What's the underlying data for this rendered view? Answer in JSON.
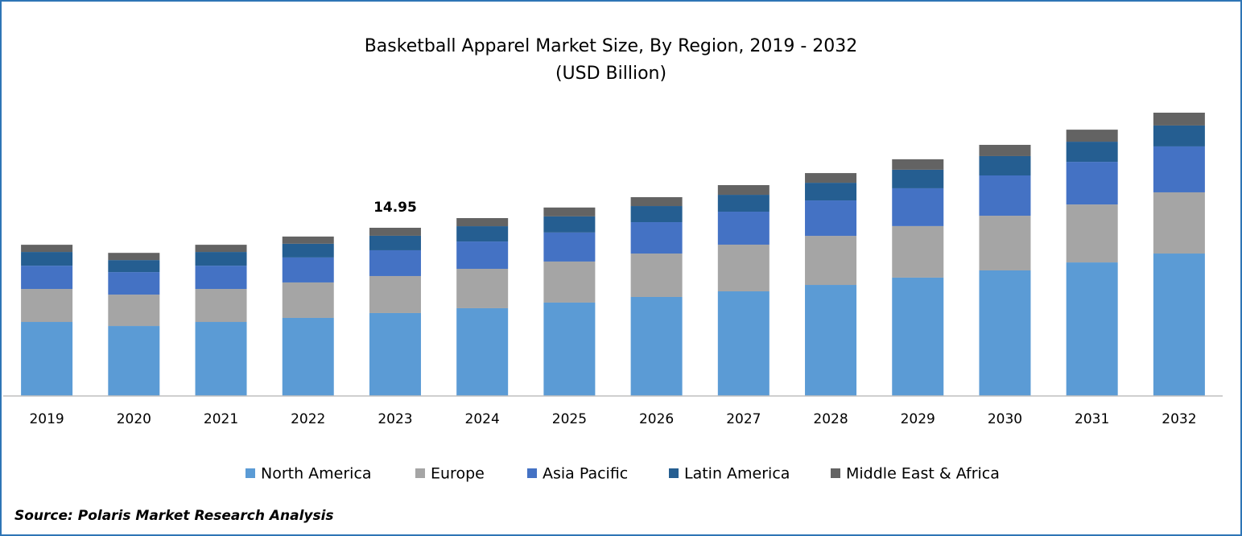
{
  "chart_data": {
    "type": "stacked_bar",
    "title": "Basketball Apparel Market Size, By Region, 2019 - 2032",
    "subtitle": "(USD Billion)",
    "categories": [
      "2019",
      "2020",
      "2021",
      "2022",
      "2023",
      "2024",
      "2025",
      "2026",
      "2027",
      "2028",
      "2029",
      "2030",
      "2031",
      "2032"
    ],
    "series": [
      {
        "name": "North America",
        "color": "#5b9bd5",
        "values": [
          6.58,
          6.22,
          6.58,
          6.94,
          7.37,
          7.8,
          8.3,
          8.8,
          9.3,
          9.87,
          10.52,
          11.16,
          11.87,
          12.66
        ]
      },
      {
        "name": "Europe",
        "color": "#a5a5a5",
        "values": [
          2.93,
          2.79,
          2.93,
          3.15,
          3.29,
          3.5,
          3.65,
          3.86,
          4.15,
          4.36,
          4.58,
          4.86,
          5.15,
          5.44
        ]
      },
      {
        "name": "Asia Pacific",
        "color": "#4472c4",
        "values": [
          2.07,
          2.0,
          2.07,
          2.22,
          2.29,
          2.43,
          2.58,
          2.79,
          2.93,
          3.15,
          3.36,
          3.58,
          3.79,
          4.08
        ]
      },
      {
        "name": "Latin America",
        "color": "#255e91",
        "values": [
          1.22,
          1.07,
          1.22,
          1.22,
          1.29,
          1.36,
          1.43,
          1.43,
          1.5,
          1.57,
          1.65,
          1.72,
          1.79,
          1.86
        ]
      },
      {
        "name": "Middle East & Africa",
        "color": "#636363",
        "values": [
          0.64,
          0.64,
          0.64,
          0.64,
          0.71,
          0.72,
          0.79,
          0.79,
          0.86,
          0.86,
          0.93,
          1.0,
          1.07,
          1.14
        ]
      }
    ],
    "annotation": {
      "value": 14.95,
      "category": "2023"
    },
    "source": "Source: Polaris Market Research Analysis"
  }
}
